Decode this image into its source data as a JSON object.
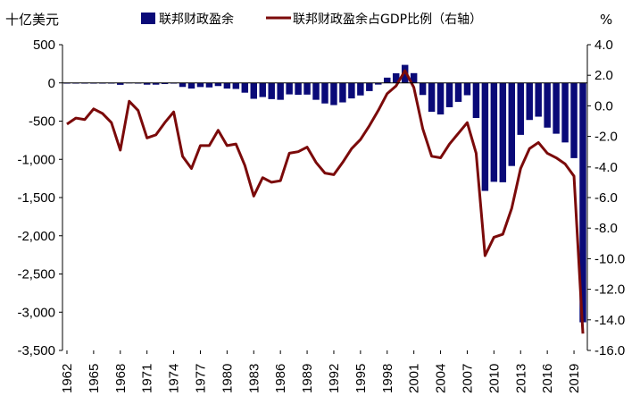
{
  "chart_data": {
    "type": "bar+line",
    "left_unit_label": "十亿美元",
    "right_unit_label": "%",
    "legend": [
      "联邦财政盈余",
      "联邦财政盈余占GDP比例（右轴）"
    ],
    "colors": {
      "bar": "#0a0a78",
      "line": "#7b0a0a"
    },
    "ylim_left": [
      -3500,
      500
    ],
    "yticks_left": [
      500,
      0,
      -500,
      -1000,
      -1500,
      -2000,
      -2500,
      -3000,
      -3500
    ],
    "ytick_labels_left": [
      "500",
      "0",
      "-500",
      "-1,000",
      "-1,500",
      "-2,000",
      "-2,500",
      "-3,000",
      "-3,500"
    ],
    "ylim_right": [
      -16,
      4
    ],
    "yticks_right": [
      4,
      2,
      0,
      -2,
      -4,
      -6,
      -8,
      -10,
      -12,
      -14,
      -16
    ],
    "ytick_labels_right": [
      "4.0",
      "2.0",
      "0.0",
      "-2.0",
      "-4.0",
      "-6.0",
      "-8.0",
      "-10.0",
      "-12.0",
      "-14.0",
      "-16.0"
    ],
    "x": [
      1962,
      1963,
      1964,
      1965,
      1966,
      1967,
      1968,
      1969,
      1970,
      1971,
      1972,
      1973,
      1974,
      1975,
      1976,
      1977,
      1978,
      1979,
      1980,
      1981,
      1982,
      1983,
      1984,
      1985,
      1986,
      1987,
      1988,
      1989,
      1990,
      1991,
      1992,
      1993,
      1994,
      1995,
      1996,
      1997,
      1998,
      1999,
      2000,
      2001,
      2002,
      2003,
      2004,
      2005,
      2006,
      2007,
      2008,
      2009,
      2010,
      2011,
      2012,
      2013,
      2014,
      2015,
      2016,
      2017,
      2018,
      2019,
      2020
    ],
    "x_tick_labels": [
      "1962",
      "1965",
      "1968",
      "1971",
      "1974",
      "1977",
      "1980",
      "1983",
      "1986",
      "1989",
      "1992",
      "1995",
      "1998",
      "2001",
      "2004",
      "2007",
      "2010",
      "2013",
      "2016",
      "2019"
    ],
    "series": [
      {
        "name": "联邦财政盈余",
        "axis": "left",
        "type": "bar",
        "values": [
          -7,
          -5,
          -6,
          -1,
          -4,
          -9,
          -25,
          3,
          -3,
          -23,
          -23,
          -15,
          -6,
          -53,
          -74,
          -54,
          -59,
          -41,
          -74,
          -79,
          -128,
          -208,
          -185,
          -212,
          -221,
          -150,
          -155,
          -153,
          -221,
          -269,
          -290,
          -255,
          -203,
          -164,
          -107,
          -22,
          69,
          126,
          236,
          128,
          -158,
          -378,
          -413,
          -318,
          -248,
          -161,
          -459,
          -1413,
          -1294,
          -1300,
          -1087,
          -680,
          -485,
          -442,
          -585,
          -665,
          -779,
          -984,
          -3132
        ]
      },
      {
        "name": "联邦财政盈余占GDP比例（右轴）",
        "axis": "right",
        "type": "line",
        "values": [
          -1.2,
          -0.8,
          -0.9,
          -0.2,
          -0.5,
          -1.1,
          -2.9,
          0.3,
          -0.3,
          -2.1,
          -1.9,
          -1.1,
          -0.4,
          -3.3,
          -4.1,
          -2.6,
          -2.6,
          -1.6,
          -2.6,
          -2.5,
          -3.9,
          -5.9,
          -4.7,
          -5.0,
          -4.9,
          -3.1,
          -3.0,
          -2.7,
          -3.7,
          -4.4,
          -4.5,
          -3.7,
          -2.8,
          -2.2,
          -1.3,
          -0.3,
          0.8,
          1.3,
          2.3,
          1.2,
          -1.5,
          -3.3,
          -3.4,
          -2.5,
          -1.8,
          -1.1,
          -3.1,
          -9.8,
          -8.6,
          -8.4,
          -6.7,
          -4.1,
          -2.8,
          -2.4,
          -3.1,
          -3.4,
          -3.8,
          -4.6,
          -14.9
        ]
      }
    ]
  }
}
